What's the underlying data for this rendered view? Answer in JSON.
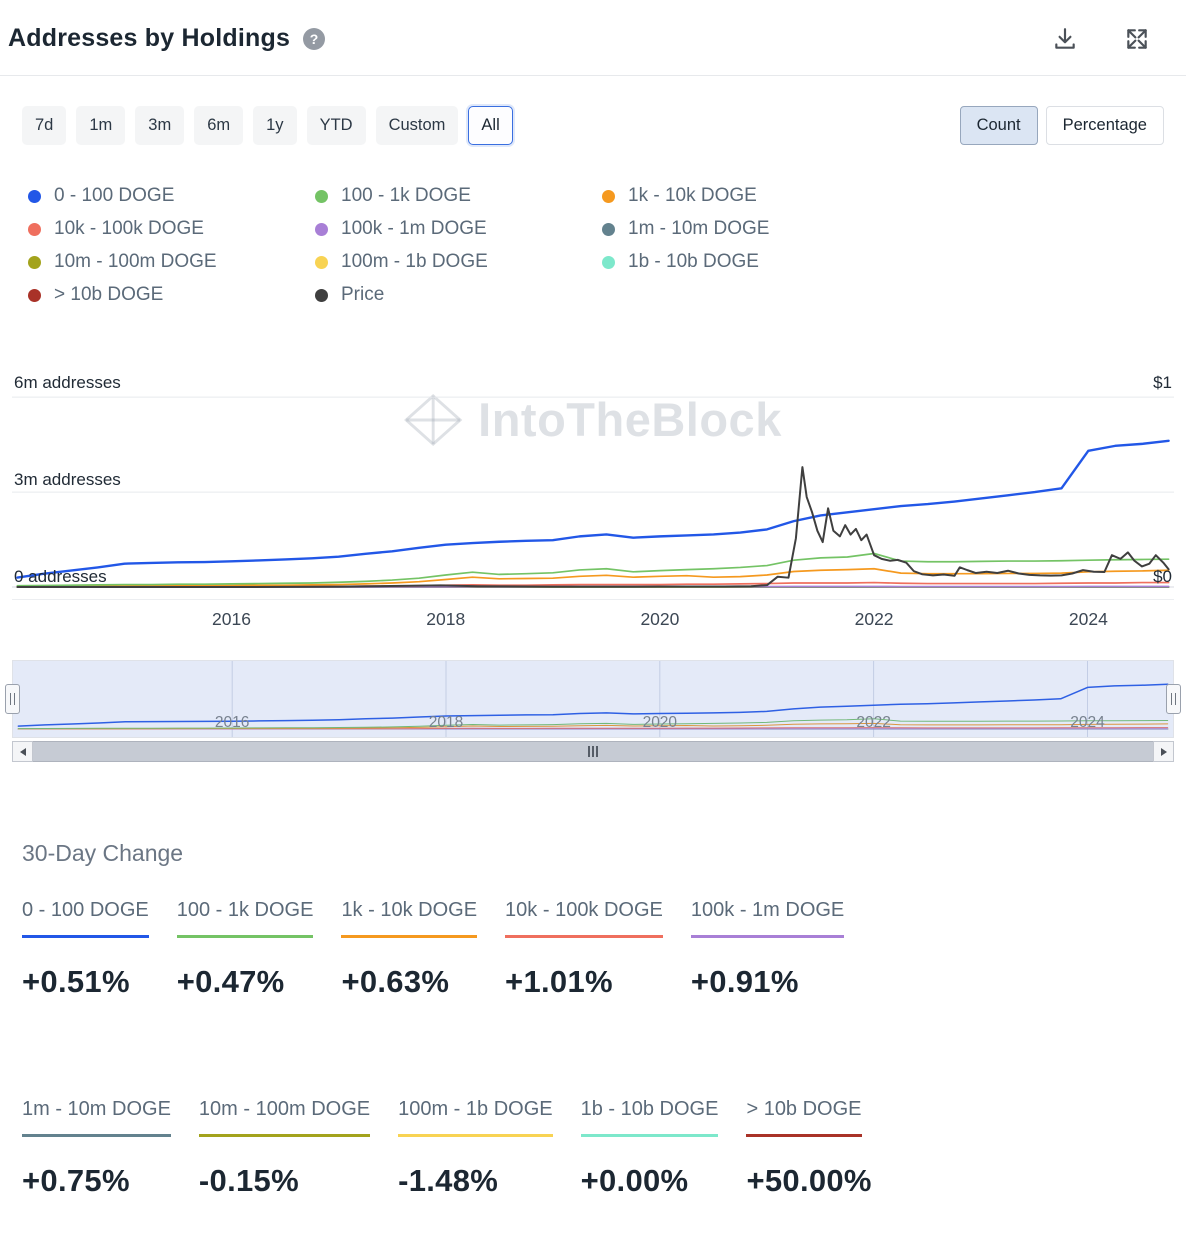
{
  "header": {
    "title": "Addresses by Holdings",
    "help_glyph": "?"
  },
  "toolbar": {
    "ranges": [
      "7d",
      "1m",
      "3m",
      "6m",
      "1y",
      "YTD",
      "Custom",
      "All"
    ],
    "active_range": "All",
    "mode_toggle": {
      "options": [
        "Count",
        "Percentage"
      ],
      "active": "Count"
    }
  },
  "legend": {
    "items": [
      {
        "label": "0 - 100 DOGE",
        "color": "#2257e7"
      },
      {
        "label": "100 - 1k DOGE",
        "color": "#74c365"
      },
      {
        "label": "1k - 10k DOGE",
        "color": "#f5991f"
      },
      {
        "label": "10k - 100k DOGE",
        "color": "#ef6f5e"
      },
      {
        "label": "100k - 1m DOGE",
        "color": "#a87fd6"
      },
      {
        "label": "1m - 10m DOGE",
        "color": "#63828e"
      },
      {
        "label": "10m - 100m DOGE",
        "color": "#a3a31c"
      },
      {
        "label": "100m - 1b DOGE",
        "color": "#f8d353"
      },
      {
        "label": "1b - 10b DOGE",
        "color": "#7de8cb"
      },
      {
        "label": "> 10b DOGE",
        "color": "#a93228"
      },
      {
        "label": "Price",
        "color": "#3f3f3f"
      }
    ]
  },
  "chart": {
    "watermark": "IntoTheBlock",
    "left_axis_labels": [
      "6m addresses",
      "3m addresses",
      "0 addresses"
    ],
    "right_axis_labels": [
      "$1",
      "$0"
    ]
  },
  "chart_data": {
    "type": "line",
    "title": "Addresses by Holdings (DOGE)",
    "x_domain": [
      2013.95,
      2024.8
    ],
    "x_ticks": [
      2016,
      2018,
      2020,
      2022,
      2024
    ],
    "left_axis": {
      "unit": "addresses",
      "range_millions": [
        0,
        6
      ],
      "tick_labels": [
        "0 addresses",
        "3m addresses",
        "6m addresses"
      ]
    },
    "right_axis": {
      "unit": "USD",
      "range": [
        0,
        1
      ],
      "tick_labels": [
        "$0",
        "$1"
      ]
    },
    "legend_position": "top-left",
    "grid": "horizontal",
    "x": [
      2014,
      2014.25,
      2014.5,
      2014.75,
      2015,
      2015.25,
      2015.5,
      2015.75,
      2016,
      2016.25,
      2016.5,
      2016.75,
      2017,
      2017.25,
      2017.5,
      2017.75,
      2018,
      2018.25,
      2018.5,
      2018.75,
      2019,
      2019.25,
      2019.5,
      2019.75,
      2020,
      2020.25,
      2020.5,
      2020.75,
      2021,
      2021.25,
      2021.5,
      2021.75,
      2022,
      2022.25,
      2022.5,
      2022.75,
      2023,
      2023.25,
      2023.5,
      2023.75,
      2024,
      2024.25,
      2024.5,
      2024.75
    ],
    "series": [
      {
        "name": "0 - 100 DOGE",
        "color": "#2257e7",
        "axis": "left",
        "values_millions": [
          0.3,
          0.42,
          0.52,
          0.62,
          0.74,
          0.76,
          0.78,
          0.79,
          0.81,
          0.84,
          0.87,
          0.91,
          0.96,
          1.05,
          1.13,
          1.24,
          1.34,
          1.39,
          1.43,
          1.46,
          1.48,
          1.6,
          1.66,
          1.56,
          1.6,
          1.63,
          1.66,
          1.72,
          1.82,
          2.08,
          2.26,
          2.36,
          2.46,
          2.56,
          2.62,
          2.7,
          2.8,
          2.9,
          3.0,
          3.12,
          4.3,
          4.46,
          4.52,
          4.62
        ]
      },
      {
        "name": "100 - 1k DOGE",
        "color": "#74c365",
        "axis": "left",
        "values_millions": [
          0.04,
          0.05,
          0.06,
          0.07,
          0.08,
          0.08,
          0.09,
          0.09,
          0.1,
          0.11,
          0.12,
          0.13,
          0.15,
          0.18,
          0.22,
          0.28,
          0.38,
          0.47,
          0.4,
          0.42,
          0.45,
          0.54,
          0.58,
          0.48,
          0.52,
          0.55,
          0.58,
          0.62,
          0.68,
          0.85,
          0.92,
          0.95,
          1.06,
          0.82,
          0.8,
          0.8,
          0.81,
          0.82,
          0.82,
          0.83,
          0.85,
          0.86,
          0.87,
          0.88
        ]
      },
      {
        "name": "1k - 10k DOGE",
        "color": "#f5991f",
        "axis": "left",
        "values_millions": [
          0.02,
          0.02,
          0.03,
          0.03,
          0.03,
          0.04,
          0.04,
          0.05,
          0.05,
          0.06,
          0.06,
          0.07,
          0.08,
          0.1,
          0.13,
          0.17,
          0.24,
          0.31,
          0.26,
          0.27,
          0.28,
          0.34,
          0.37,
          0.31,
          0.34,
          0.36,
          0.31,
          0.33,
          0.38,
          0.49,
          0.53,
          0.55,
          0.58,
          0.44,
          0.42,
          0.42,
          0.42,
          0.43,
          0.43,
          0.44,
          0.48,
          0.5,
          0.51,
          0.53
        ]
      },
      {
        "name": "10k - 100k DOGE",
        "color": "#ef6f5e",
        "axis": "left",
        "values_millions": [
          0.01,
          0.01,
          0.01,
          0.01,
          0.01,
          0.01,
          0.02,
          0.02,
          0.02,
          0.02,
          0.02,
          0.02,
          0.02,
          0.03,
          0.03,
          0.04,
          0.06,
          0.07,
          0.06,
          0.06,
          0.07,
          0.08,
          0.08,
          0.08,
          0.08,
          0.09,
          0.09,
          0.1,
          0.11,
          0.13,
          0.13,
          0.13,
          0.14,
          0.12,
          0.11,
          0.11,
          0.11,
          0.11,
          0.11,
          0.12,
          0.13,
          0.13,
          0.14,
          0.14
        ]
      },
      {
        "name": "100k - 1m DOGE",
        "color": "#a87fd6",
        "axis": "left",
        "values_millions": [
          0.003,
          0.003,
          0.004,
          0.004,
          0.004,
          0.004,
          0.005,
          0.005,
          0.005,
          0.005,
          0.005,
          0.006,
          0.006,
          0.007,
          0.008,
          0.009,
          0.011,
          0.012,
          0.011,
          0.011,
          0.012,
          0.013,
          0.013,
          0.013,
          0.013,
          0.014,
          0.014,
          0.015,
          0.016,
          0.018,
          0.018,
          0.018,
          0.019,
          0.017,
          0.016,
          0.016,
          0.016,
          0.016,
          0.016,
          0.017,
          0.018,
          0.018,
          0.019,
          0.019
        ]
      },
      {
        "name": "1m - 10m DOGE",
        "color": "#63828e",
        "axis": "left",
        "values_millions": [
          0.001,
          0.001,
          0.001,
          0.001,
          0.001,
          0.001,
          0.001,
          0.001,
          0.001,
          0.001,
          0.001,
          0.001,
          0.001,
          0.001,
          0.002,
          0.002,
          0.002,
          0.002,
          0.002,
          0.002,
          0.002,
          0.002,
          0.002,
          0.002,
          0.002,
          0.003,
          0.003,
          0.003,
          0.003,
          0.003,
          0.003,
          0.003,
          0.003,
          0.003,
          0.003,
          0.003,
          0.003,
          0.003,
          0.003,
          0.003,
          0.004,
          0.004,
          0.004,
          0.004
        ]
      },
      {
        "name": "10m - 100m DOGE",
        "color": "#a3a31c",
        "axis": "left",
        "values_millions": [
          0.0005,
          0.0005,
          0.0005,
          0.0005,
          0.0005,
          0.0005,
          0.0005,
          0.0005,
          0.0005,
          0.0005,
          0.0005,
          0.0005,
          0.0005,
          0.0005,
          0.0005,
          0.0005,
          0.0005,
          0.0005,
          0.0005,
          0.0005,
          0.0005,
          0.0005,
          0.0005,
          0.0005,
          0.0007,
          0.0007,
          0.0007,
          0.0007,
          0.0007,
          0.0007,
          0.0007,
          0.0007,
          0.0007,
          0.0007,
          0.0007,
          0.0007,
          0.0009,
          0.0009,
          0.0009,
          0.0009,
          0.0009,
          0.0009,
          0.0009,
          0.0009
        ]
      },
      {
        "name": "100m - 1b DOGE",
        "color": "#f8d353",
        "axis": "left",
        "values_millions": [
          0.0002,
          0.0002,
          0.0002,
          0.0002,
          0.0002,
          0.0002,
          0.0002,
          0.0002,
          0.0002,
          0.0002,
          0.0002,
          0.0002,
          0.0002,
          0.0002,
          0.0002,
          0.0002,
          0.0002,
          0.0002,
          0.0002,
          0.0002,
          0.0002,
          0.0002,
          0.0002,
          0.0002,
          0.0002,
          0.0002,
          0.0002,
          0.0002,
          0.0002,
          0.0002,
          0.0002,
          0.0002,
          0.0002,
          0.0002,
          0.0002,
          0.0002,
          0.0002,
          0.0002,
          0.0002,
          0.0002,
          0.0002,
          0.0002,
          0.0002,
          0.0002
        ]
      },
      {
        "name": "1b - 10b DOGE",
        "color": "#7de8cb",
        "axis": "left",
        "values_millions": [
          5e-05,
          5e-05,
          5e-05,
          5e-05,
          5e-05,
          5e-05,
          5e-05,
          5e-05,
          5e-05,
          5e-05,
          5e-05,
          5e-05,
          5e-05,
          5e-05,
          5e-05,
          5e-05,
          5e-05,
          5e-05,
          5e-05,
          5e-05,
          5e-05,
          5e-05,
          5e-05,
          5e-05,
          5e-05,
          5e-05,
          5e-05,
          5e-05,
          5e-05,
          5e-05,
          5e-05,
          5e-05,
          5e-05,
          5e-05,
          5e-05,
          5e-05,
          5e-05,
          5e-05,
          5e-05,
          5e-05,
          5e-05,
          5e-05,
          5e-05,
          5e-05
        ]
      },
      {
        "name": "> 10b DOGE",
        "color": "#a93228",
        "axis": "left",
        "values_millions": [
          1e-05,
          1e-05,
          1e-05,
          1e-05,
          1e-05,
          1e-05,
          1e-05,
          1e-05,
          1e-05,
          1e-05,
          1e-05,
          1e-05,
          1e-05,
          1e-05,
          1e-05,
          1e-05,
          1e-05,
          1e-05,
          1e-05,
          1e-05,
          1e-05,
          1e-05,
          1e-05,
          1e-05,
          1e-05,
          1e-05,
          1e-05,
          1e-05,
          1e-05,
          1e-05,
          1e-05,
          1e-05,
          1e-05,
          1e-05,
          1e-05,
          1e-05,
          1e-05,
          1e-05,
          1e-05,
          1e-05,
          1e-05,
          1e-05,
          1e-05,
          1e-05
        ]
      }
    ],
    "price_series": {
      "name": "Price",
      "color": "#3f3f3f",
      "axis": "right",
      "x": [
        2014,
        2016,
        2017,
        2017.95,
        2018.3,
        2019,
        2020,
        2020.6,
        2020.85,
        2021.0,
        2021.1,
        2021.2,
        2021.27,
        2021.33,
        2021.37,
        2021.42,
        2021.47,
        2021.52,
        2021.57,
        2021.62,
        2021.68,
        2021.73,
        2021.78,
        2021.83,
        2021.88,
        2021.93,
        2022.0,
        2022.07,
        2022.15,
        2022.22,
        2022.3,
        2022.37,
        2022.45,
        2022.55,
        2022.65,
        2022.75,
        2022.8,
        2022.87,
        2022.95,
        2023.05,
        2023.15,
        2023.25,
        2023.35,
        2023.45,
        2023.55,
        2023.65,
        2023.75,
        2023.85,
        2023.95,
        2024.05,
        2024.15,
        2024.22,
        2024.3,
        2024.37,
        2024.43,
        2024.5,
        2024.57,
        2024.63,
        2024.7,
        2024.75
      ],
      "values_usd": [
        0.0003,
        0.0002,
        0.002,
        0.009,
        0.004,
        0.002,
        0.0025,
        0.003,
        0.004,
        0.01,
        0.055,
        0.05,
        0.26,
        0.64,
        0.48,
        0.4,
        0.3,
        0.24,
        0.42,
        0.3,
        0.27,
        0.33,
        0.28,
        0.31,
        0.25,
        0.28,
        0.17,
        0.15,
        0.14,
        0.145,
        0.13,
        0.085,
        0.068,
        0.062,
        0.067,
        0.06,
        0.105,
        0.09,
        0.075,
        0.082,
        0.075,
        0.087,
        0.072,
        0.065,
        0.062,
        0.061,
        0.062,
        0.072,
        0.09,
        0.082,
        0.08,
        0.17,
        0.15,
        0.185,
        0.14,
        0.11,
        0.125,
        0.17,
        0.13,
        0.095
      ]
    }
  },
  "thirty_day_change": {
    "title": "30-Day Change",
    "items": [
      {
        "label": "0 - 100 DOGE",
        "value": "+0.51%",
        "color": "#2257e7"
      },
      {
        "label": "100 - 1k DOGE",
        "value": "+0.47%",
        "color": "#74c365"
      },
      {
        "label": "1k - 10k DOGE",
        "value": "+0.63%",
        "color": "#f5991f"
      },
      {
        "label": "10k - 100k DOGE",
        "value": "+1.01%",
        "color": "#ef6f5e"
      },
      {
        "label": "100k - 1m DOGE",
        "value": "+0.91%",
        "color": "#a87fd6"
      },
      {
        "label": "1m - 10m DOGE",
        "value": "+0.75%",
        "color": "#63828e"
      },
      {
        "label": "10m - 100m DOGE",
        "value": "-0.15%",
        "color": "#a3a31c"
      },
      {
        "label": "100m - 1b DOGE",
        "value": "-1.48%",
        "color": "#f8d353"
      },
      {
        "label": "1b - 10b DOGE",
        "value": "+0.00%",
        "color": "#7de8cb"
      },
      {
        "label": "> 10b DOGE",
        "value": "+50.00%",
        "color": "#a93228"
      }
    ]
  }
}
